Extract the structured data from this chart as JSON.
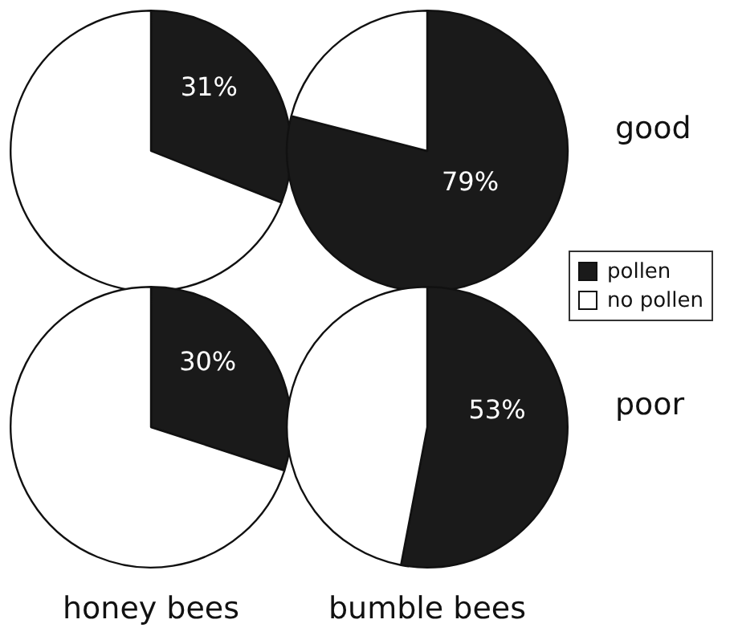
{
  "chart_data": [
    {
      "type": "pie",
      "categories": [
        null,
        null
      ],
      "values": [
        31,
        69
      ],
      "colors": [
        "#1a1a1a",
        "#ffffff"
      ],
      "value_labels": [
        "31%",
        null
      ]
    },
    {
      "type": "pie",
      "categories": [
        "pollen",
        "no pollen"
      ],
      "values": [
        79,
        21
      ],
      "colors": [
        "#1a1a1a",
        "#ffffff"
      ],
      "value_labels": [
        "79%",
        null
      ],
      "y2label": "good",
      "legend": "bottom right"
    },
    {
      "type": "pie",
      "categories": [
        null,
        null
      ],
      "values": [
        30,
        70
      ],
      "colors": [
        "#1a1a1a",
        "#ffffff"
      ],
      "value_labels": [
        "30%",
        null
      ],
      "xlabel": "honey bees"
    },
    {
      "type": "pie",
      "categories": [
        null,
        null
      ],
      "values": [
        53,
        47
      ],
      "colors": [
        "#1a1a1a",
        "#ffffff"
      ],
      "value_labels": [
        "53%",
        null
      ],
      "xlabel": "bumble bees",
      "y2label": "poor"
    }
  ]
}
